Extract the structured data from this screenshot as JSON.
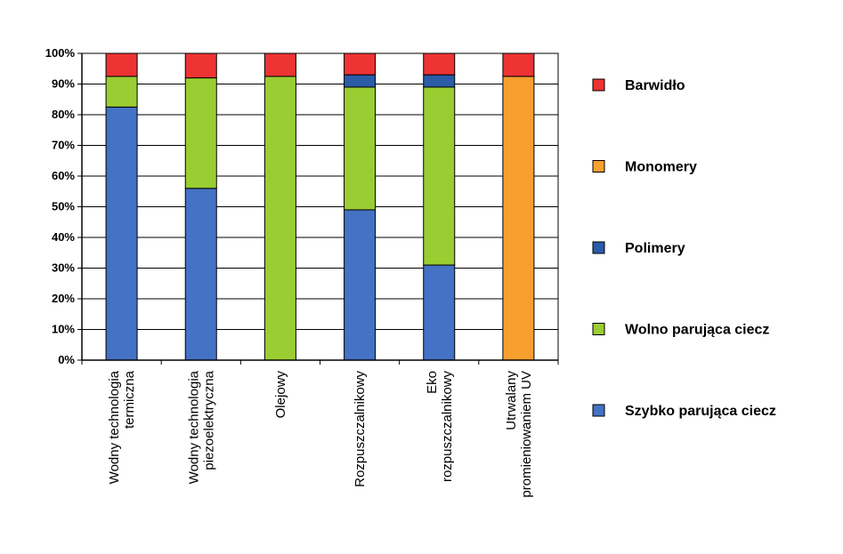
{
  "chart_data": {
    "type": "bar",
    "stacked": true,
    "title": "",
    "xlabel": "",
    "ylabel": "",
    "ylim": [
      0,
      100
    ],
    "y_ticks": [
      "0%",
      "10%",
      "20%",
      "30%",
      "40%",
      "50%",
      "60%",
      "70%",
      "80%",
      "90%",
      "100%"
    ],
    "grid": true,
    "legend_position": "right",
    "categories": [
      [
        "Wodny technologia",
        "termiczna"
      ],
      [
        "Wodny technologia",
        "piezoelektryczna"
      ],
      [
        "Olejowy"
      ],
      [
        "Rozpuszczalnikowy"
      ],
      [
        "Eko",
        "rozpuszczalnikowy"
      ],
      [
        "Utrwalany",
        "promieniowaniem UV"
      ]
    ],
    "series": [
      {
        "name": "Szybko parująca ciecz",
        "color": "#4472c4",
        "values": [
          82.5,
          56,
          0,
          49,
          31,
          0
        ]
      },
      {
        "name": "Wolno parująca ciecz",
        "color": "#9acd32",
        "values": [
          10,
          36,
          92.5,
          40,
          58,
          0
        ]
      },
      {
        "name": "Polimery",
        "color": "#2a5ca8",
        "values": [
          0,
          0,
          0,
          4,
          4,
          0
        ]
      },
      {
        "name": "Monomery",
        "color": "#f7a030",
        "values": [
          0,
          0,
          0,
          0,
          0,
          92.5
        ]
      },
      {
        "name": "Barwidło",
        "color": "#ee3333",
        "values": [
          7.5,
          8,
          7.5,
          7,
          7,
          7.5
        ]
      }
    ],
    "legend_order": [
      "Barwidło",
      "Monomery",
      "Polimery",
      "Wolno parująca ciecz",
      "Szybko parująca ciecz"
    ]
  }
}
